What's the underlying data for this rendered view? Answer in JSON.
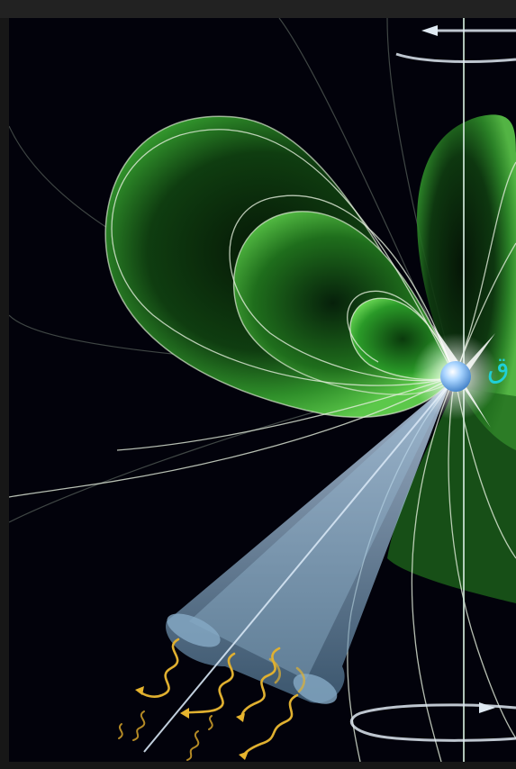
{
  "image": {
    "subject": "pulsar-illustration",
    "text_label": "ق",
    "colors": {
      "background": "#02020b",
      "frame": "#171717",
      "magnetosphere_green": "#2ea82a",
      "field_lines": "#d8e4d0",
      "beam": "#7fa8c8",
      "star": "#8fc3f0",
      "label": "#1fd0d8",
      "photon_wave": "#e0b030"
    }
  }
}
